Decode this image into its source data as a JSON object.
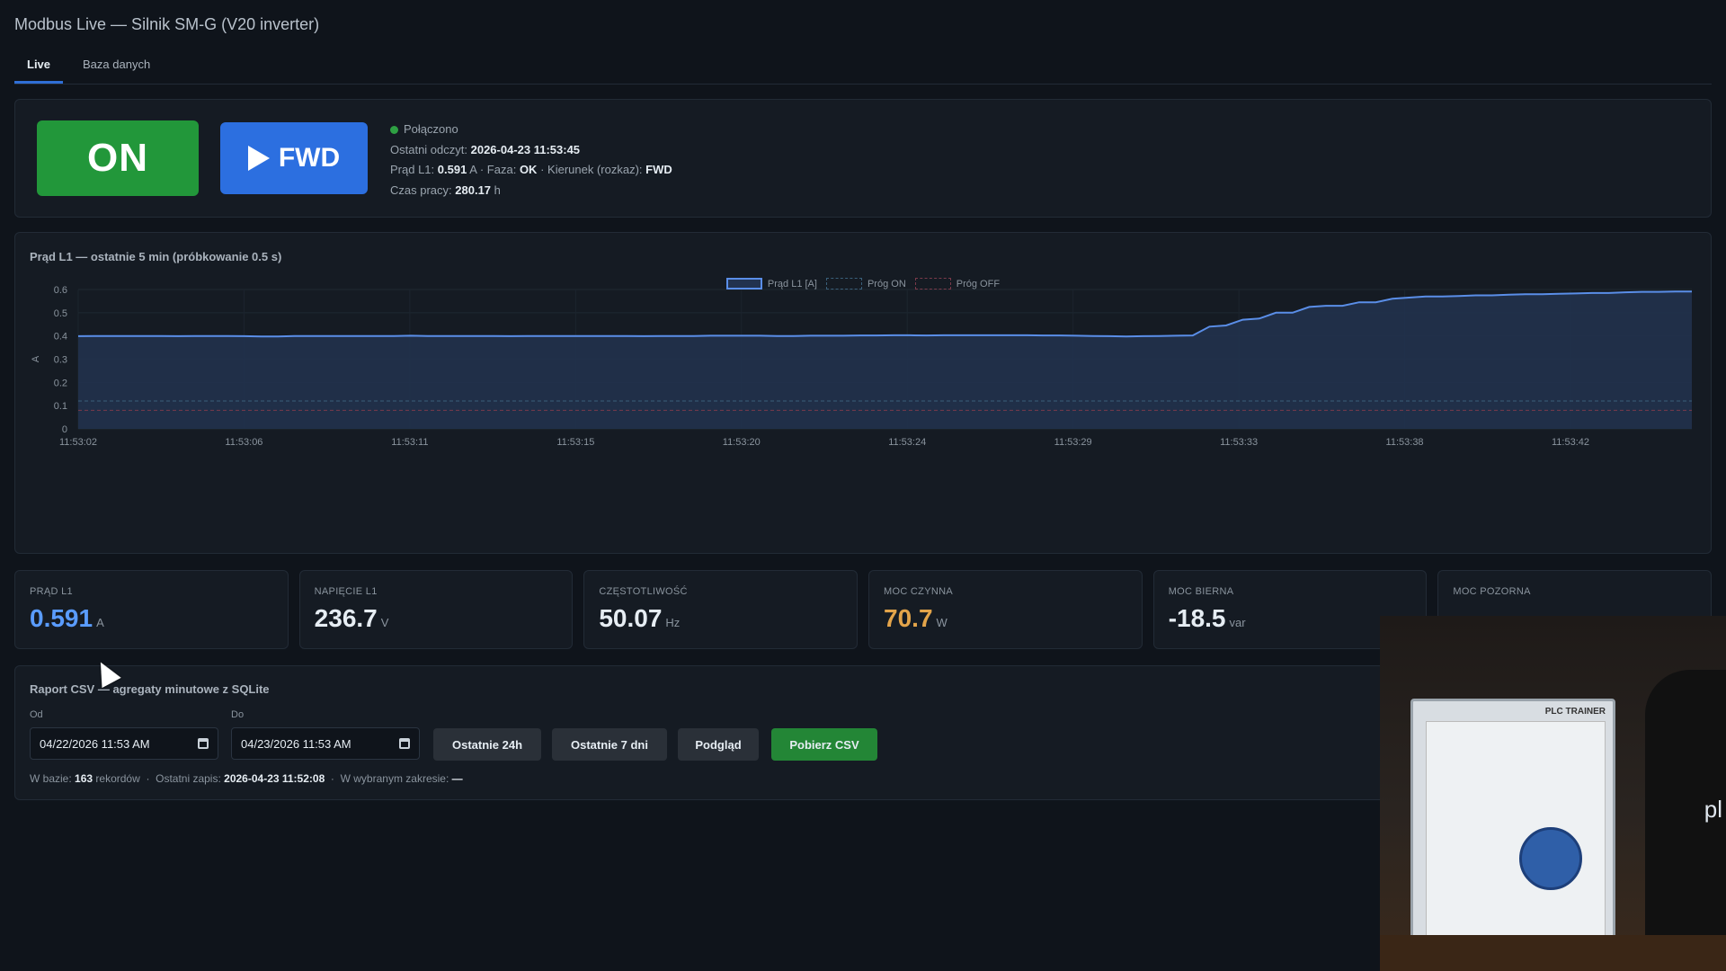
{
  "app": {
    "title": "Modbus Live — Silnik SM-G (V20 inverter)"
  },
  "tabs": [
    {
      "label": "Live"
    },
    {
      "label": "Baza danych"
    }
  ],
  "status": {
    "on_label": "ON",
    "fwd_label": "FWD",
    "connected": "Połączono",
    "last_read_label": "Ostatni odczyt:",
    "last_read_value": "2026-04-23 11:53:45",
    "current_label": "Prąd L1:",
    "current_value": "0.591",
    "current_unit": "A",
    "phase_label": "Faza:",
    "phase_value": "OK",
    "direction_label": "Kierunek (rozkaz):",
    "direction_value": "FWD",
    "runtime_label": "Czas pracy:",
    "runtime_value": "280.17",
    "runtime_unit": "h",
    "sep": "·"
  },
  "chart": {
    "title": "Prąd L1 — ostatnie 5 min (próbkowanie 0.5 s)",
    "legend": {
      "series": "Prąd L1 [A]",
      "on": "Próg ON",
      "off": "Próg OFF"
    }
  },
  "chart_data": {
    "type": "area",
    "ylabel": "A",
    "ylim": [
      0,
      0.6
    ],
    "yticks": [
      "0",
      "0.1",
      "0.2",
      "0.3",
      "0.4",
      "0.5",
      "0.6"
    ],
    "xticks": [
      "11:53:02",
      "11:53:06",
      "11:53:11",
      "11:53:15",
      "11:53:20",
      "11:53:24",
      "11:53:29",
      "11:53:33",
      "11:53:38",
      "11:53:42"
    ],
    "threshold_on": 0.12,
    "threshold_off": 0.08,
    "colors": {
      "series": "#5a8ee8",
      "fill": "#22324f",
      "on": "#3a5f7a",
      "off": "#7a3a4a"
    },
    "series": [
      {
        "name": "Prąd L1 [A]",
        "x": [
          0,
          1,
          2,
          3,
          4,
          5,
          6,
          7,
          8,
          9,
          10,
          11,
          12,
          13,
          14,
          15,
          16,
          17,
          18,
          19,
          20,
          21,
          22,
          23,
          24,
          25,
          26,
          27,
          28,
          29,
          30,
          31,
          32,
          33,
          34,
          35,
          36,
          37,
          38,
          39,
          40,
          41,
          42,
          43,
          44,
          45,
          46,
          47,
          48,
          49,
          50,
          51,
          52,
          53,
          54,
          55,
          56,
          57,
          58,
          59,
          60,
          61,
          62,
          63,
          64,
          65,
          66,
          67,
          68,
          69,
          70,
          71,
          72,
          73,
          74,
          75,
          76,
          77,
          78,
          79,
          80,
          81,
          82,
          83,
          84,
          85,
          86,
          87,
          88,
          89,
          90,
          91,
          92,
          93,
          94,
          95,
          96,
          97
        ],
        "values": [
          0.399,
          0.4,
          0.4,
          0.4,
          0.4,
          0.4,
          0.399,
          0.4,
          0.4,
          0.4,
          0.399,
          0.398,
          0.398,
          0.4,
          0.4,
          0.4,
          0.4,
          0.4,
          0.4,
          0.4,
          0.401,
          0.4,
          0.4,
          0.4,
          0.4,
          0.4,
          0.399,
          0.4,
          0.4,
          0.4,
          0.4,
          0.4,
          0.4,
          0.4,
          0.399,
          0.4,
          0.4,
          0.4,
          0.401,
          0.401,
          0.401,
          0.401,
          0.4,
          0.4,
          0.401,
          0.401,
          0.401,
          0.402,
          0.402,
          0.403,
          0.403,
          0.402,
          0.403,
          0.403,
          0.403,
          0.403,
          0.403,
          0.403,
          0.402,
          0.402,
          0.401,
          0.4,
          0.399,
          0.398,
          0.399,
          0.4,
          0.401,
          0.402,
          0.44,
          0.445,
          0.47,
          0.475,
          0.5,
          0.5,
          0.525,
          0.53,
          0.53,
          0.545,
          0.545,
          0.56,
          0.565,
          0.57,
          0.57,
          0.572,
          0.575,
          0.575,
          0.578,
          0.58,
          0.58,
          0.582,
          0.583,
          0.585,
          0.585,
          0.588,
          0.59,
          0.59,
          0.591,
          0.591
        ]
      }
    ]
  },
  "cards": [
    {
      "label": "PRĄD L1",
      "value": "0.591",
      "unit": "A"
    },
    {
      "label": "NAPIĘCIE L1",
      "value": "236.7",
      "unit": "V"
    },
    {
      "label": "CZĘSTOTLIWOŚĆ",
      "value": "50.07",
      "unit": "Hz"
    },
    {
      "label": "MOC CZYNNA",
      "value": "70.7",
      "unit": "W"
    },
    {
      "label": "MOC BIERNA",
      "value": "-18.5",
      "unit": "var"
    },
    {
      "label": "MOC POZORNA",
      "value": "",
      "unit": ""
    }
  ],
  "report": {
    "title": "Raport CSV — agregaty minutowe z SQLite",
    "from_label": "Od",
    "from_value": "04/22/2026 11:53 AM",
    "to_label": "Do",
    "to_value": "04/23/2026 11:53 AM",
    "btn_24h": "Ostatnie 24h",
    "btn_7d": "Ostatnie 7 dni",
    "btn_preview": "Podgląd",
    "btn_csv": "Pobierz CSV",
    "meta_db_label": "W bazie:",
    "meta_db_count": "163",
    "meta_db_unit": "rekordów",
    "meta_last_label": "Ostatni zapis:",
    "meta_last_value": "2026-04-23 11:52:08",
    "meta_range_label": "W wybranym zakresie:",
    "meta_range_value": "—",
    "sep": "·"
  },
  "webcam": {
    "trainer_label": "PLC TRAINER",
    "person_text": "pl"
  }
}
